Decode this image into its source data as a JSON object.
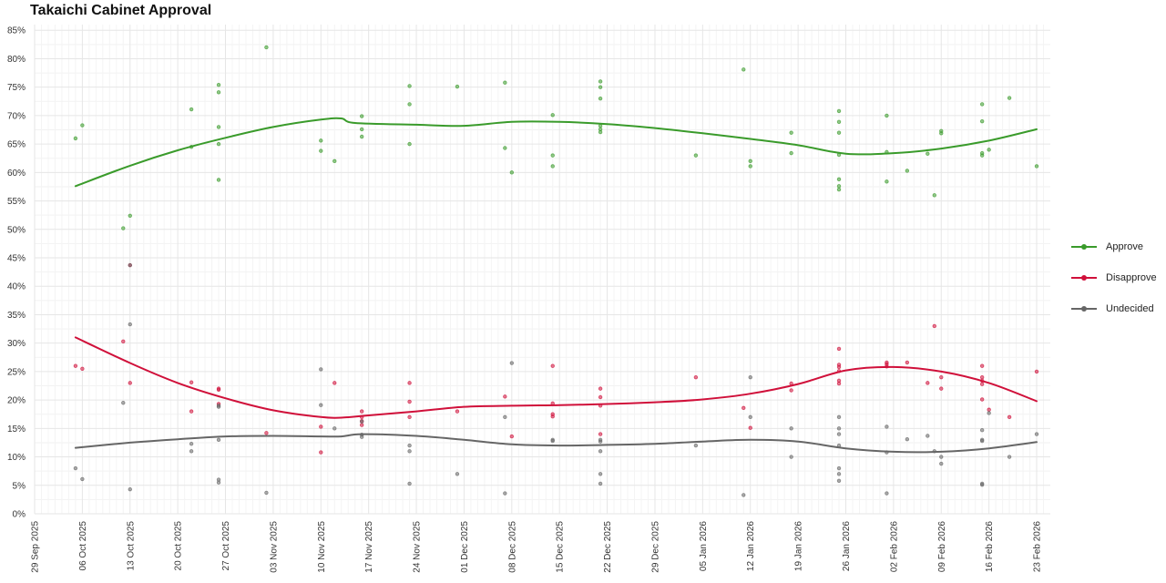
{
  "chart_data": {
    "type": "scatter",
    "title": "Takaichi Cabinet Approval",
    "xlabel": "",
    "ylabel": "",
    "ylim": [
      0,
      0.86
    ],
    "xlim": [
      "2025-09-29",
      "2026-02-25"
    ],
    "grid": true,
    "legend_position": "right",
    "y_ticks": [
      "0%",
      "5%",
      "10%",
      "15%",
      "20%",
      "25%",
      "30%",
      "35%",
      "40%",
      "45%",
      "50%",
      "55%",
      "60%",
      "65%",
      "70%",
      "75%",
      "80%",
      "85%"
    ],
    "x_ticks": [
      "29 Sep 2025",
      "06 Oct 2025",
      "13 Oct 2025",
      "20 Oct 2025",
      "27 Oct 2025",
      "03 Nov 2025",
      "10 Nov 2025",
      "17 Nov 2025",
      "24 Nov 2025",
      "01 Dec 2025",
      "08 Dec 2025",
      "15 Dec 2025",
      "22 Dec 2025",
      "29 Dec 2025",
      "05 Jan 2026",
      "12 Jan 2026",
      "19 Jan 2026",
      "26 Jan 2026",
      "02 Feb 2026",
      "09 Feb 2026",
      "16 Feb 2026",
      "23 Feb 2026"
    ],
    "series": [
      {
        "name": "Approve",
        "color": "#3a9b2b",
        "points": [
          [
            "2025-10-05",
            0.66
          ],
          [
            "2025-10-06",
            0.683
          ],
          [
            "2025-10-12",
            0.502
          ],
          [
            "2025-10-13",
            0.524
          ],
          [
            "2025-10-22",
            0.711
          ],
          [
            "2025-10-22",
            0.645
          ],
          [
            "2025-10-26",
            0.754
          ],
          [
            "2025-10-26",
            0.741
          ],
          [
            "2025-10-26",
            0.68
          ],
          [
            "2025-10-26",
            0.65
          ],
          [
            "2025-10-26",
            0.587
          ],
          [
            "2025-11-02",
            0.82
          ],
          [
            "2025-11-10",
            0.656
          ],
          [
            "2025-11-10",
            0.638
          ],
          [
            "2025-11-12",
            0.62
          ],
          [
            "2025-11-16",
            0.699
          ],
          [
            "2025-11-16",
            0.676
          ],
          [
            "2025-11-16",
            0.663
          ],
          [
            "2025-11-23",
            0.752
          ],
          [
            "2025-11-23",
            0.72
          ],
          [
            "2025-11-23",
            0.65
          ],
          [
            "2025-11-30",
            0.751
          ],
          [
            "2025-12-07",
            0.758
          ],
          [
            "2025-12-07",
            0.643
          ],
          [
            "2025-12-08",
            0.6
          ],
          [
            "2025-12-14",
            0.701
          ],
          [
            "2025-12-14",
            0.63
          ],
          [
            "2025-12-14",
            0.611
          ],
          [
            "2025-12-21",
            0.76
          ],
          [
            "2025-12-21",
            0.75
          ],
          [
            "2025-12-21",
            0.73
          ],
          [
            "2025-12-21",
            0.682
          ],
          [
            "2025-12-21",
            0.676
          ],
          [
            "2025-12-21",
            0.671
          ],
          [
            "2026-01-04",
            0.63
          ],
          [
            "2026-01-11",
            0.781
          ],
          [
            "2026-01-12",
            0.62
          ],
          [
            "2026-01-12",
            0.611
          ],
          [
            "2026-01-18",
            0.67
          ],
          [
            "2026-01-18",
            0.634
          ],
          [
            "2026-01-25",
            0.708
          ],
          [
            "2026-01-25",
            0.689
          ],
          [
            "2026-01-25",
            0.67
          ],
          [
            "2026-01-25",
            0.631
          ],
          [
            "2026-01-25",
            0.588
          ],
          [
            "2026-01-25",
            0.576
          ],
          [
            "2026-01-25",
            0.57
          ],
          [
            "2026-02-01",
            0.7
          ],
          [
            "2026-02-01",
            0.636
          ],
          [
            "2026-02-01",
            0.584
          ],
          [
            "2026-02-04",
            0.603
          ],
          [
            "2026-02-07",
            0.633
          ],
          [
            "2026-02-08",
            0.56
          ],
          [
            "2026-02-09",
            0.673
          ],
          [
            "2026-02-09",
            0.669
          ],
          [
            "2026-02-15",
            0.72
          ],
          [
            "2026-02-15",
            0.69
          ],
          [
            "2026-02-15",
            0.634
          ],
          [
            "2026-02-15",
            0.63
          ],
          [
            "2026-02-16",
            0.64
          ],
          [
            "2026-02-19",
            0.731
          ],
          [
            "2026-02-23",
            0.611
          ]
        ],
        "trend": [
          [
            "2025-10-05",
            0.576
          ],
          [
            "2025-10-13",
            0.612
          ],
          [
            "2025-10-20",
            0.639
          ],
          [
            "2025-10-27",
            0.661
          ],
          [
            "2025-11-03",
            0.68
          ],
          [
            "2025-11-10",
            0.693
          ],
          [
            "2025-11-13",
            0.695
          ],
          [
            "2025-11-15",
            0.687
          ],
          [
            "2025-11-24",
            0.684
          ],
          [
            "2025-12-01",
            0.682
          ],
          [
            "2025-12-08",
            0.689
          ],
          [
            "2025-12-15",
            0.689
          ],
          [
            "2025-12-22",
            0.685
          ],
          [
            "2025-12-29",
            0.678
          ],
          [
            "2026-01-05",
            0.669
          ],
          [
            "2026-01-12",
            0.659
          ],
          [
            "2026-01-19",
            0.648
          ],
          [
            "2026-01-26",
            0.633
          ],
          [
            "2026-02-02",
            0.634
          ],
          [
            "2026-02-09",
            0.642
          ],
          [
            "2026-02-16",
            0.656
          ],
          [
            "2026-02-23",
            0.676
          ]
        ]
      },
      {
        "name": "Disapprove",
        "color": "#d0103a",
        "points": [
          [
            "2025-10-05",
            0.26
          ],
          [
            "2025-10-06",
            0.255
          ],
          [
            "2025-10-12",
            0.303
          ],
          [
            "2025-10-13",
            0.437
          ],
          [
            "2025-10-13",
            0.23
          ],
          [
            "2025-10-22",
            0.231
          ],
          [
            "2025-10-22",
            0.18
          ],
          [
            "2025-10-26",
            0.22
          ],
          [
            "2025-10-26",
            0.218
          ],
          [
            "2025-10-26",
            0.193
          ],
          [
            "2025-11-02",
            0.142
          ],
          [
            "2025-11-10",
            0.153
          ],
          [
            "2025-11-10",
            0.108
          ],
          [
            "2025-11-12",
            0.23
          ],
          [
            "2025-11-16",
            0.18
          ],
          [
            "2025-11-16",
            0.17
          ],
          [
            "2025-11-16",
            0.163
          ],
          [
            "2025-11-16",
            0.156
          ],
          [
            "2025-11-23",
            0.23
          ],
          [
            "2025-11-23",
            0.197
          ],
          [
            "2025-11-23",
            0.17
          ],
          [
            "2025-11-30",
            0.18
          ],
          [
            "2025-12-07",
            0.206
          ],
          [
            "2025-12-08",
            0.136
          ],
          [
            "2025-12-14",
            0.26
          ],
          [
            "2025-12-14",
            0.194
          ],
          [
            "2025-12-14",
            0.175
          ],
          [
            "2025-12-14",
            0.171
          ],
          [
            "2025-12-21",
            0.22
          ],
          [
            "2025-12-21",
            0.205
          ],
          [
            "2025-12-21",
            0.19
          ],
          [
            "2025-12-21",
            0.14
          ],
          [
            "2026-01-04",
            0.24
          ],
          [
            "2026-01-11",
            0.186
          ],
          [
            "2026-01-12",
            0.151
          ],
          [
            "2026-01-18",
            0.229
          ],
          [
            "2026-01-18",
            0.217
          ],
          [
            "2026-01-25",
            0.29
          ],
          [
            "2026-01-25",
            0.262
          ],
          [
            "2026-01-25",
            0.258
          ],
          [
            "2026-01-25",
            0.251
          ],
          [
            "2026-01-25",
            0.234
          ],
          [
            "2026-01-25",
            0.229
          ],
          [
            "2026-02-01",
            0.266
          ],
          [
            "2026-02-01",
            0.263
          ],
          [
            "2026-02-01",
            0.259
          ],
          [
            "2026-02-04",
            0.266
          ],
          [
            "2026-02-07",
            0.23
          ],
          [
            "2026-02-08",
            0.33
          ],
          [
            "2026-02-09",
            0.24
          ],
          [
            "2026-02-09",
            0.22
          ],
          [
            "2026-02-15",
            0.26
          ],
          [
            "2026-02-15",
            0.24
          ],
          [
            "2026-02-15",
            0.234
          ],
          [
            "2026-02-15",
            0.228
          ],
          [
            "2026-02-15",
            0.201
          ],
          [
            "2026-02-16",
            0.183
          ],
          [
            "2026-02-19",
            0.17
          ],
          [
            "2026-02-23",
            0.25
          ]
        ],
        "trend": [
          [
            "2025-10-05",
            0.31
          ],
          [
            "2025-10-13",
            0.265
          ],
          [
            "2025-10-20",
            0.23
          ],
          [
            "2025-10-27",
            0.203
          ],
          [
            "2025-11-03",
            0.182
          ],
          [
            "2025-11-10",
            0.17
          ],
          [
            "2025-11-13",
            0.169
          ],
          [
            "2025-11-17",
            0.173
          ],
          [
            "2025-11-24",
            0.18
          ],
          [
            "2025-12-01",
            0.188
          ],
          [
            "2025-12-08",
            0.19
          ],
          [
            "2025-12-15",
            0.191
          ],
          [
            "2025-12-22",
            0.193
          ],
          [
            "2025-12-29",
            0.196
          ],
          [
            "2026-01-05",
            0.201
          ],
          [
            "2026-01-12",
            0.211
          ],
          [
            "2026-01-19",
            0.228
          ],
          [
            "2026-01-26",
            0.252
          ],
          [
            "2026-02-02",
            0.258
          ],
          [
            "2026-02-09",
            0.25
          ],
          [
            "2026-02-16",
            0.23
          ],
          [
            "2026-02-23",
            0.198
          ]
        ]
      },
      {
        "name": "Undecided",
        "color": "#666666",
        "points": [
          [
            "2025-10-05",
            0.08
          ],
          [
            "2025-10-06",
            0.061
          ],
          [
            "2025-10-12",
            0.195
          ],
          [
            "2025-10-13",
            0.043
          ],
          [
            "2025-10-13",
            0.333
          ],
          [
            "2025-10-13",
            0.437
          ],
          [
            "2025-10-22",
            0.123
          ],
          [
            "2025-10-22",
            0.11
          ],
          [
            "2025-10-26",
            0.19
          ],
          [
            "2025-10-26",
            0.188
          ],
          [
            "2025-10-26",
            0.13
          ],
          [
            "2025-10-26",
            0.06
          ],
          [
            "2025-10-26",
            0.055
          ],
          [
            "2025-11-02",
            0.037
          ],
          [
            "2025-11-10",
            0.254
          ],
          [
            "2025-11-10",
            0.191
          ],
          [
            "2025-11-12",
            0.15
          ],
          [
            "2025-11-16",
            0.162
          ],
          [
            "2025-11-16",
            0.139
          ],
          [
            "2025-11-16",
            0.135
          ],
          [
            "2025-11-23",
            0.12
          ],
          [
            "2025-11-23",
            0.11
          ],
          [
            "2025-11-23",
            0.053
          ],
          [
            "2025-11-30",
            0.07
          ],
          [
            "2025-12-07",
            0.17
          ],
          [
            "2025-12-07",
            0.036
          ],
          [
            "2025-12-08",
            0.265
          ],
          [
            "2025-12-14",
            0.13
          ],
          [
            "2025-12-14",
            0.128
          ],
          [
            "2025-12-21",
            0.13
          ],
          [
            "2025-12-21",
            0.127
          ],
          [
            "2025-12-21",
            0.11
          ],
          [
            "2025-12-21",
            0.07
          ],
          [
            "2025-12-21",
            0.053
          ],
          [
            "2026-01-04",
            0.12
          ],
          [
            "2026-01-11",
            0.033
          ],
          [
            "2026-01-12",
            0.24
          ],
          [
            "2026-01-12",
            0.17
          ],
          [
            "2026-01-18",
            0.15
          ],
          [
            "2026-01-18",
            0.1
          ],
          [
            "2026-01-25",
            0.17
          ],
          [
            "2026-01-25",
            0.15
          ],
          [
            "2026-01-25",
            0.14
          ],
          [
            "2026-01-25",
            0.12
          ],
          [
            "2026-01-25",
            0.08
          ],
          [
            "2026-01-25",
            0.07
          ],
          [
            "2026-01-25",
            0.058
          ],
          [
            "2026-02-01",
            0.153
          ],
          [
            "2026-02-01",
            0.108
          ],
          [
            "2026-02-01",
            0.036
          ],
          [
            "2026-02-04",
            0.131
          ],
          [
            "2026-02-07",
            0.137
          ],
          [
            "2026-02-08",
            0.11
          ],
          [
            "2026-02-09",
            0.1
          ],
          [
            "2026-02-09",
            0.088
          ],
          [
            "2026-02-15",
            0.147
          ],
          [
            "2026-02-15",
            0.13
          ],
          [
            "2026-02-15",
            0.128
          ],
          [
            "2026-02-15",
            0.053
          ],
          [
            "2026-02-15",
            0.051
          ],
          [
            "2026-02-16",
            0.177
          ],
          [
            "2026-02-19",
            0.1
          ],
          [
            "2026-02-23",
            0.14
          ]
        ],
        "trend": [
          [
            "2025-10-05",
            0.116
          ],
          [
            "2025-10-13",
            0.125
          ],
          [
            "2025-10-20",
            0.131
          ],
          [
            "2025-10-27",
            0.136
          ],
          [
            "2025-11-03",
            0.137
          ],
          [
            "2025-11-10",
            0.136
          ],
          [
            "2025-11-13",
            0.136
          ],
          [
            "2025-11-16",
            0.14
          ],
          [
            "2025-11-24",
            0.137
          ],
          [
            "2025-12-01",
            0.13
          ],
          [
            "2025-12-08",
            0.122
          ],
          [
            "2025-12-15",
            0.12
          ],
          [
            "2025-12-22",
            0.121
          ],
          [
            "2025-12-29",
            0.123
          ],
          [
            "2026-01-05",
            0.127
          ],
          [
            "2026-01-12",
            0.13
          ],
          [
            "2026-01-19",
            0.127
          ],
          [
            "2026-01-26",
            0.115
          ],
          [
            "2026-02-02",
            0.109
          ],
          [
            "2026-02-09",
            0.109
          ],
          [
            "2026-02-16",
            0.115
          ],
          [
            "2026-02-23",
            0.126
          ]
        ]
      }
    ]
  }
}
